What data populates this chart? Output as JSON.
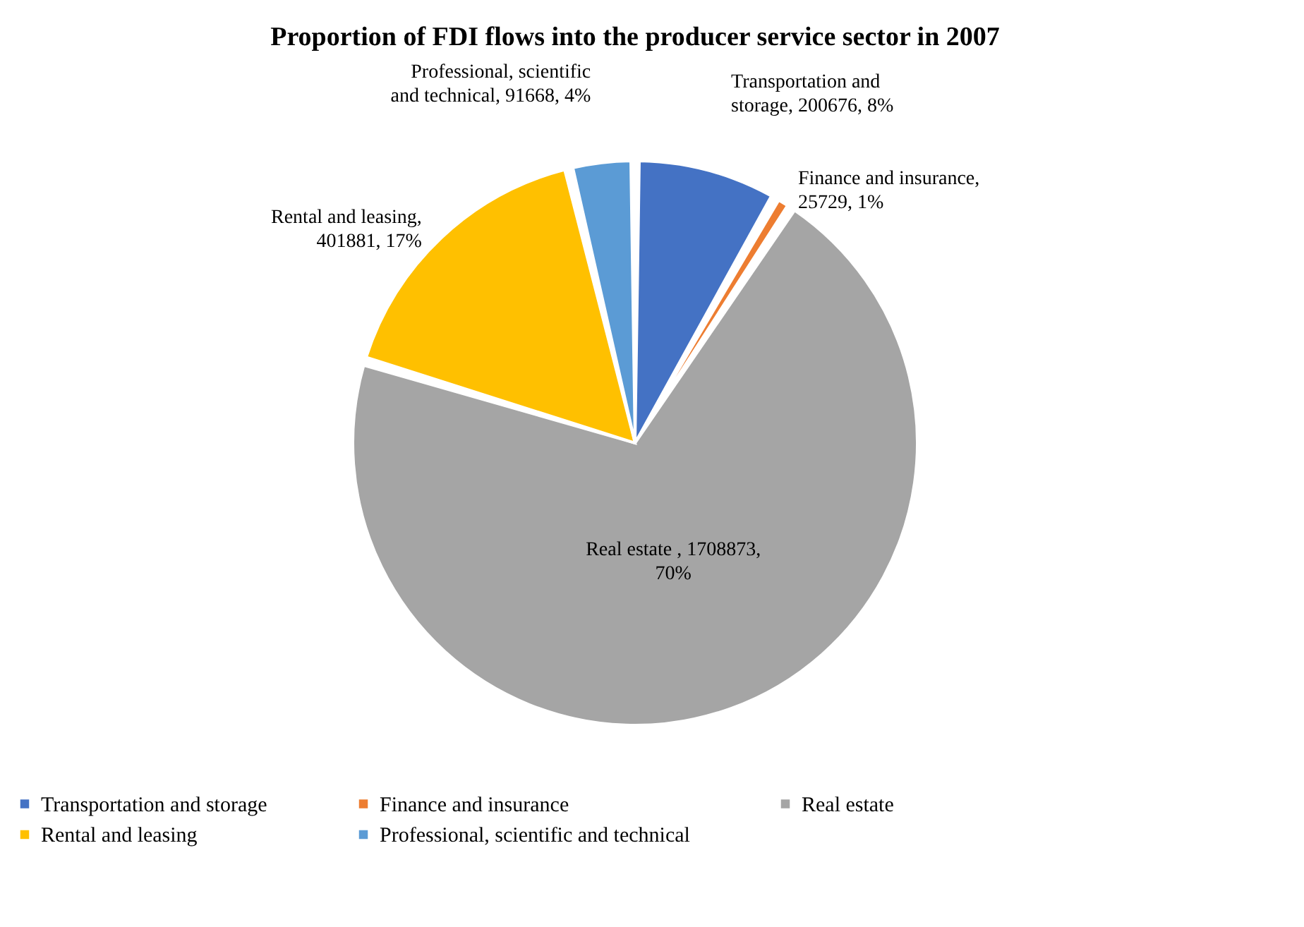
{
  "chart_data": {
    "type": "pie",
    "title": "Proportion of FDI flows into the producer service sector in 2007",
    "categories": [
      "Transportation and storage",
      "Finance and insurance",
      "Real estate",
      "Rental and leasing",
      "Professional, scientific and technical"
    ],
    "values": [
      200676,
      25729,
      1708873,
      401881,
      91668
    ],
    "colors": [
      "#4472c4",
      "#ed7d31",
      "#a5a5a5",
      "#ffc000",
      "#5b9bd5"
    ],
    "value_labels": [
      "Transportation and storage, 200676, 8%",
      "Finance and insurance, 25729, 1%",
      "Real estate , 1708873, 70%",
      "Rental and leasing, 401881, 17%",
      "Professional, scientific and technical, 91668, 4%"
    ],
    "legend": "bottom"
  }
}
